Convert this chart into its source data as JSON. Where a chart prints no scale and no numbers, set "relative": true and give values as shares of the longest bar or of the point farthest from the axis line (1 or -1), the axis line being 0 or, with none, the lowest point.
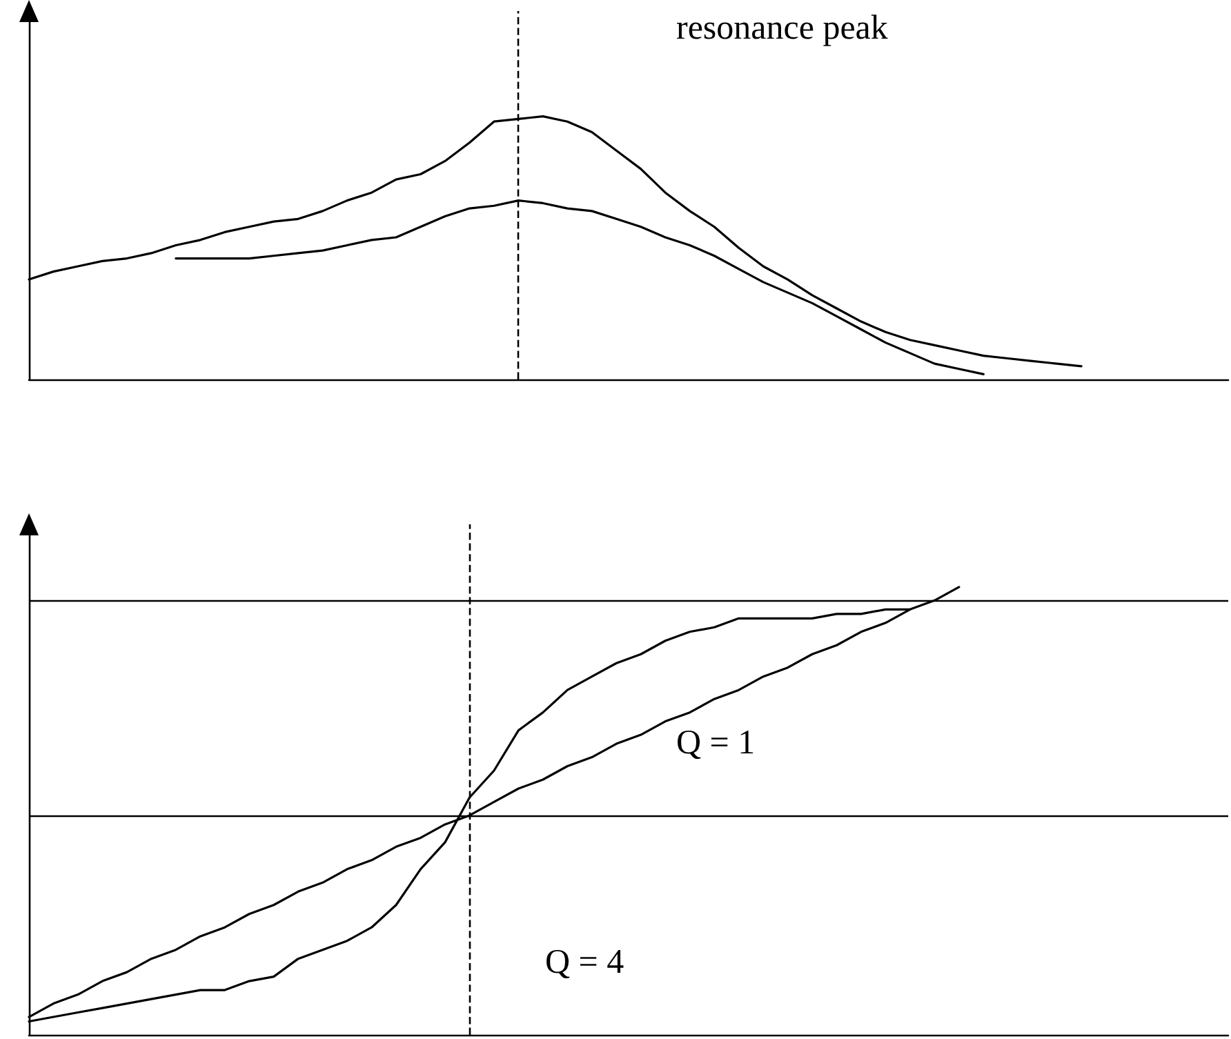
{
  "chart_data": [
    {
      "type": "line",
      "relative": true,
      "tick_labels": false,
      "marker": "none",
      "annotations": [
        "resonance peak"
      ],
      "categories": [
        null,
        null,
        null,
        null,
        null,
        null,
        null,
        null,
        null,
        null,
        null,
        null,
        null,
        null,
        null,
        null,
        null,
        null,
        null,
        null,
        null,
        null,
        null,
        null,
        null,
        null,
        null,
        null,
        null,
        null,
        null,
        null,
        null,
        null,
        null,
        null,
        null,
        null,
        null,
        null,
        null,
        null,
        null,
        null,
        null,
        null,
        null,
        null,
        null,
        null
      ],
      "series": [
        {
          "color": "#000000",
          "values": [
            0.38,
            0.41,
            0.43,
            0.45,
            0.46,
            0.48,
            0.51,
            0.53,
            0.56,
            0.58,
            0.6,
            0.61,
            0.64,
            0.68,
            0.71,
            0.76,
            0.78,
            0.83,
            0.9,
            0.98,
            0.99,
            1.0,
            0.98,
            0.94,
            0.87,
            0.8,
            0.71,
            0.64,
            0.58,
            0.5,
            0.43,
            0.38,
            0.32,
            0.27,
            0.22,
            0.18,
            0.15,
            0.13,
            0.11,
            0.09,
            0.08,
            0.07,
            0.06,
            0.05,
            null,
            null,
            null,
            null,
            null,
            null
          ]
        },
        {
          "color": "#000000",
          "values": [
            null,
            null,
            null,
            null,
            null,
            null,
            0.46,
            0.46,
            0.46,
            0.46,
            0.47,
            0.48,
            0.49,
            0.51,
            0.53,
            0.54,
            0.58,
            0.62,
            0.65,
            0.66,
            0.68,
            0.67,
            0.65,
            0.64,
            0.61,
            0.58,
            0.54,
            0.51,
            0.47,
            0.42,
            0.37,
            0.33,
            0.29,
            0.24,
            0.19,
            0.14,
            0.1,
            0.06,
            0.04,
            0.02,
            null,
            null,
            null,
            null,
            null,
            null,
            null,
            null,
            null,
            null
          ]
        }
      ]
    },
    {
      "type": "line",
      "relative": true,
      "tick_labels": false,
      "marker": "none",
      "annotations": [
        "Q = 1",
        "Q = 4"
      ],
      "categories": [
        null,
        null,
        null,
        null,
        null,
        null,
        null,
        null,
        null,
        null,
        null,
        null,
        null,
        null,
        null,
        null,
        null,
        null,
        null,
        null,
        null,
        null,
        null,
        null,
        null,
        null,
        null,
        null,
        null,
        null,
        null,
        null,
        null,
        null,
        null,
        null,
        null,
        null,
        null,
        null,
        null,
        null,
        null,
        null,
        null,
        null,
        null,
        null,
        null,
        null
      ],
      "series": [
        {
          "color": "#000000",
          "values": [
            0.04,
            0.07,
            0.09,
            0.12,
            0.14,
            0.17,
            0.19,
            0.22,
            0.24,
            0.27,
            0.29,
            0.32,
            0.34,
            0.37,
            0.39,
            0.42,
            0.44,
            0.47,
            0.49,
            0.52,
            0.55,
            0.57,
            0.6,
            0.62,
            0.65,
            0.67,
            0.7,
            0.72,
            0.75,
            0.77,
            0.8,
            0.82,
            0.85,
            0.87,
            0.9,
            0.92,
            0.95,
            0.97,
            1.0,
            null,
            null,
            null,
            null,
            null,
            null,
            null,
            null,
            null,
            null,
            null
          ]
        },
        {
          "color": "#000000",
          "values": [
            0.03,
            0.04,
            0.05,
            0.06,
            0.07,
            0.08,
            0.09,
            0.1,
            0.1,
            0.12,
            0.13,
            0.17,
            0.19,
            0.21,
            0.24,
            0.29,
            0.37,
            0.43,
            0.53,
            0.59,
            0.68,
            0.72,
            0.77,
            0.8,
            0.83,
            0.85,
            0.88,
            0.9,
            0.91,
            0.93,
            0.93,
            0.93,
            0.93,
            0.94,
            0.94,
            0.95,
            0.95,
            null,
            null,
            null,
            null,
            null,
            null,
            null,
            null,
            null,
            null,
            null,
            null,
            null
          ]
        }
      ],
      "ref_lines": [
        {
          "axis": "y",
          "value": 0.97,
          "color": "#000000"
        },
        {
          "axis": "y",
          "value": 0.49,
          "color": "#000000"
        }
      ]
    }
  ]
}
